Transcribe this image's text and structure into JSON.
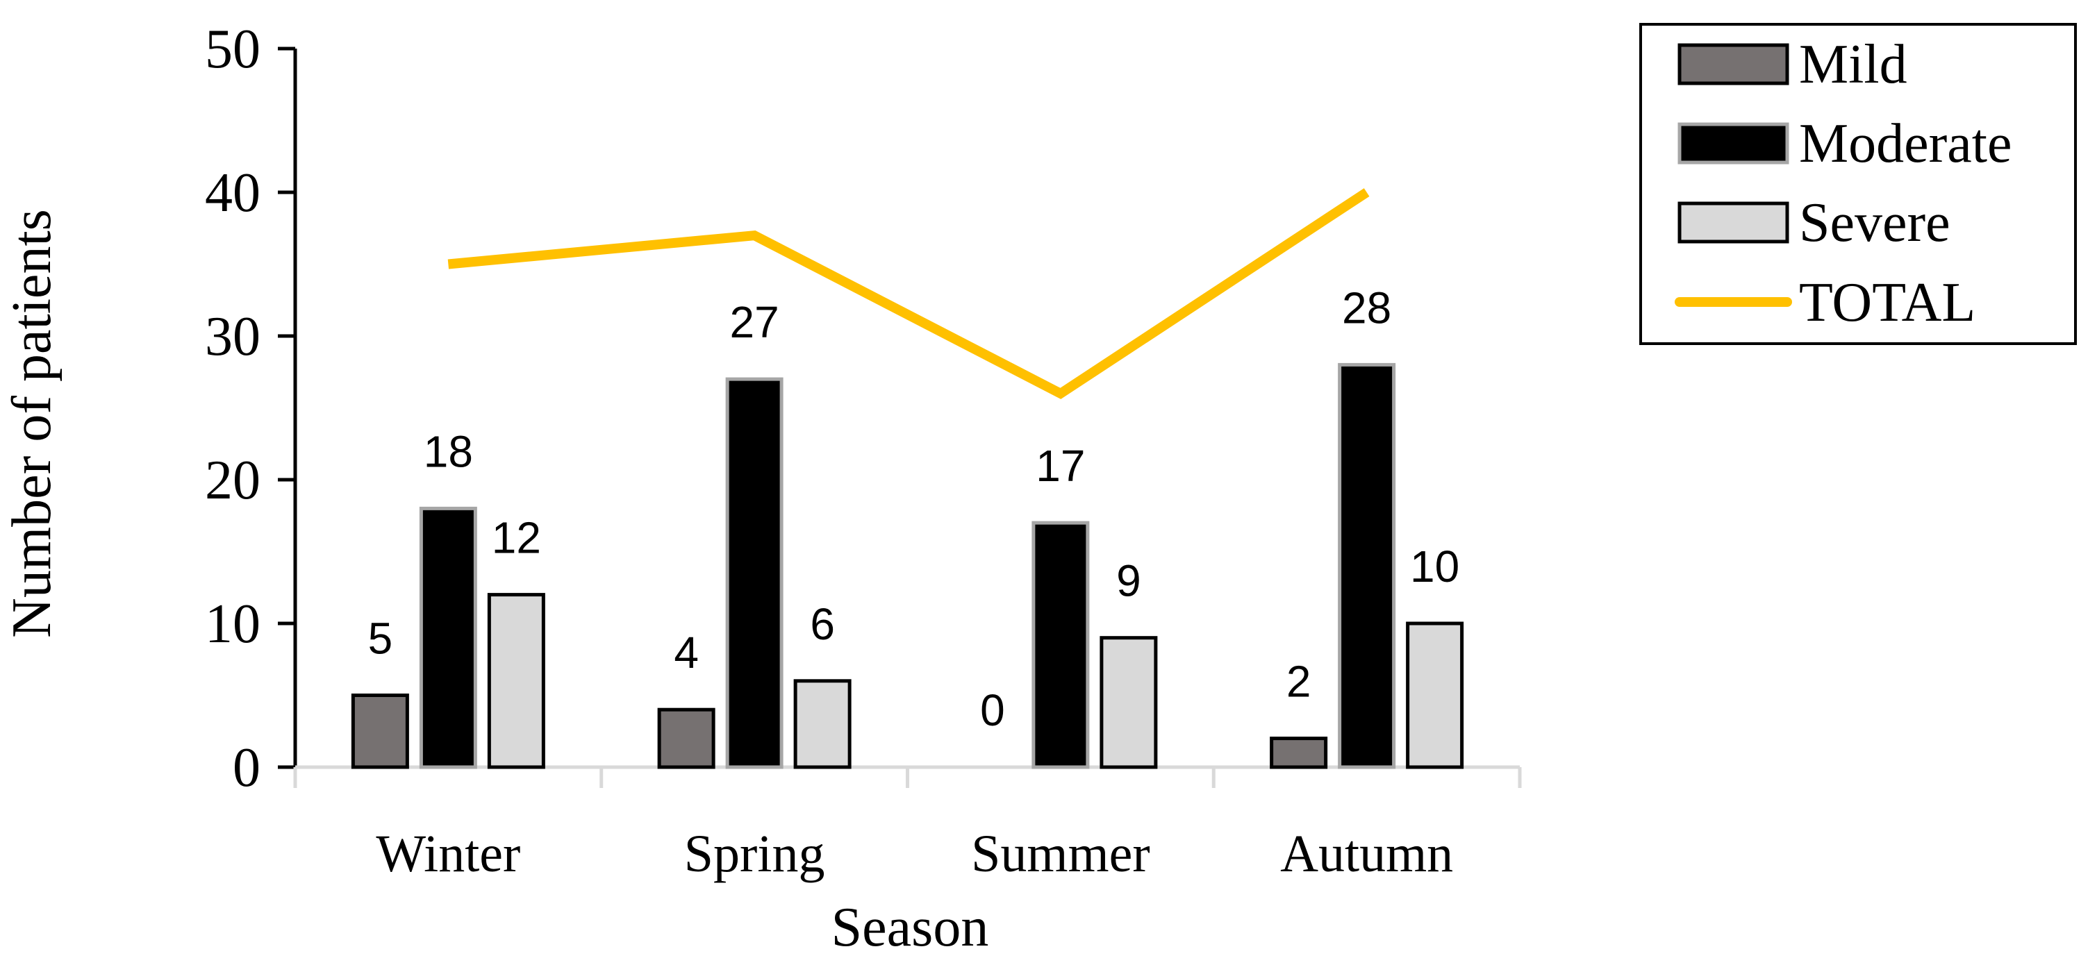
{
  "chart_data": {
    "type": "bar",
    "title": "",
    "xlabel": "Season",
    "ylabel": "Number of patients",
    "ylim": [
      0,
      50
    ],
    "yticks": [
      0,
      10,
      20,
      30,
      40,
      50
    ],
    "categories": [
      "Winter",
      "Spring",
      "Summer",
      "Autumn"
    ],
    "series": [
      {
        "name": "Mild",
        "kind": "bar",
        "color": "#767171",
        "border": "#000000",
        "values": [
          5,
          4,
          0,
          2
        ]
      },
      {
        "name": "Moderate",
        "kind": "bar",
        "color": "#000000",
        "border": "#a6a6a6",
        "values": [
          18,
          27,
          17,
          28
        ]
      },
      {
        "name": "Severe",
        "kind": "bar",
        "color": "#d9d9d9",
        "border": "#000000",
        "values": [
          12,
          6,
          9,
          10
        ]
      },
      {
        "name": "TOTAL",
        "kind": "line",
        "color": "#ffc000",
        "values": [
          35,
          37,
          26,
          40
        ]
      }
    ],
    "data_labels": [
      "Mild",
      "Moderate",
      "Severe"
    ],
    "legend_position": "top-right",
    "grid": false
  }
}
